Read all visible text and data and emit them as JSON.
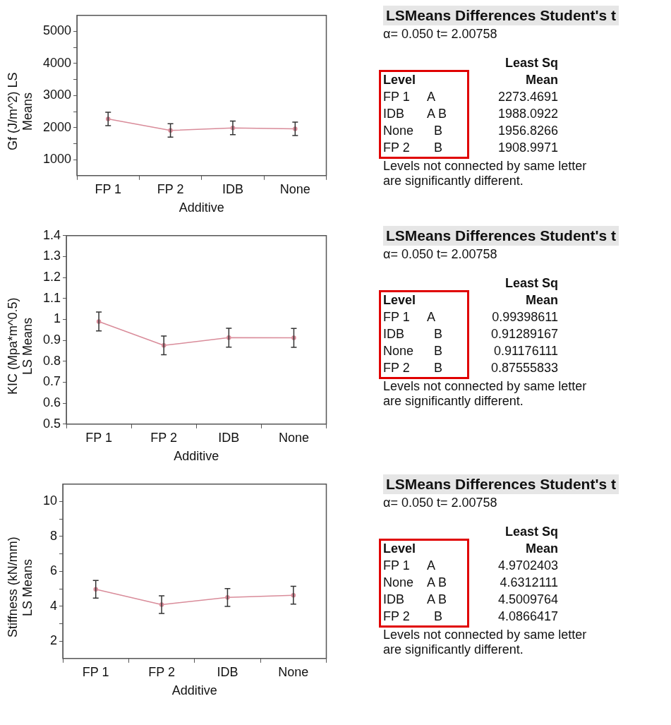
{
  "chart_data": [
    {
      "type": "line",
      "xlabel": "Additive",
      "ylabel": "Gf (J/m^2) LS Means",
      "categories": [
        "FP 1",
        "FP 2",
        "IDB",
        "None"
      ],
      "series": [
        {
          "color": "#d98c9a",
          "values": [
            2270,
            1910,
            1990,
            1960
          ],
          "errors": [
            210,
            210,
            210,
            210
          ]
        }
      ],
      "ylim": [
        500,
        5500
      ],
      "yticks": [
        1000,
        {
          "value": 1500,
          "label": null
        },
        2000,
        {
          "value": 2500,
          "label": null
        },
        3000,
        {
          "value": 3500,
          "label": null
        },
        4000,
        {
          "value": 4500,
          "label": null
        },
        5000
      ],
      "marker": "circle"
    },
    {
      "type": "other",
      "title": "LSMeans Differences Student's t",
      "subtitle": "α= 0.050 t= 2.00758",
      "xlabel": "Level",
      "ylabel": "Least Sq Mean",
      "categories": [
        "FP 1",
        "IDB",
        "None",
        "FP 2"
      ],
      "values": [
        2273.4691,
        1988.0922,
        1956.8266,
        1908.9971
      ],
      "data_labels": true,
      "annotations": [
        "A",
        "A B",
        "  B",
        "  B",
        "Levels not connected by same letter are significantly different."
      ]
    },
    {
      "type": "line",
      "xlabel": "Additive",
      "ylabel": "KIC (Mpa*m^0.5) LS Means",
      "categories": [
        "FP 1",
        "FP 2",
        "IDB",
        "None"
      ],
      "series": [
        {
          "color": "#d98c9a",
          "values": [
            0.99,
            0.876,
            0.913,
            0.912
          ],
          "errors": [
            0.045,
            0.045,
            0.045,
            0.045
          ]
        }
      ],
      "ylim": [
        0.5,
        1.4
      ],
      "yticks": [
        0.5,
        0.6,
        0.7,
        0.8,
        0.9,
        1,
        1.1,
        1.2,
        1.3,
        1.4
      ],
      "marker": "circle"
    },
    {
      "type": "other",
      "title": "LSMeans Differences Student's t",
      "subtitle": "α= 0.050 t= 2.00758",
      "xlabel": "Level",
      "ylabel": "Least Sq Mean",
      "categories": [
        "FP 1",
        "IDB",
        "None",
        "FP 2"
      ],
      "values": [
        0.99398611,
        0.91289167,
        0.91176111,
        0.87555833
      ],
      "data_labels": true,
      "annotations": [
        "A",
        "  B",
        "  B",
        "  B",
        "Levels not connected by same letter are significantly different."
      ]
    },
    {
      "type": "line",
      "xlabel": "Additive",
      "ylabel": "Stiffness (kN/mm) LS Means",
      "categories": [
        "FP 1",
        "FP 2",
        "IDB",
        "None"
      ],
      "series": [
        {
          "color": "#d98c9a",
          "values": [
            4.97,
            4.09,
            4.5,
            4.63
          ],
          "errors": [
            0.51,
            0.51,
            0.51,
            0.51
          ]
        }
      ],
      "ylim": [
        1,
        11
      ],
      "yticks": [
        2,
        {
          "value": 3,
          "label": null
        },
        4,
        {
          "value": 5,
          "label": null
        },
        6,
        {
          "value": 7,
          "label": null
        },
        8,
        {
          "value": 9,
          "label": null
        },
        10
      ],
      "marker": "circle"
    },
    {
      "type": "other",
      "title": "LSMeans Differences Student's t",
      "subtitle": "α= 0.050 t= 2.00758",
      "xlabel": "Level",
      "ylabel": "Least Sq Mean",
      "categories": [
        "FP 1",
        "None",
        "IDB",
        "FP 2"
      ],
      "values": [
        4.9702403,
        4.6312111,
        4.5009764,
        4.0866417
      ],
      "data_labels": true,
      "annotations": [
        "A",
        "A B",
        "A B",
        "  B",
        "Levels not connected by same letter are significantly different."
      ]
    }
  ]
}
